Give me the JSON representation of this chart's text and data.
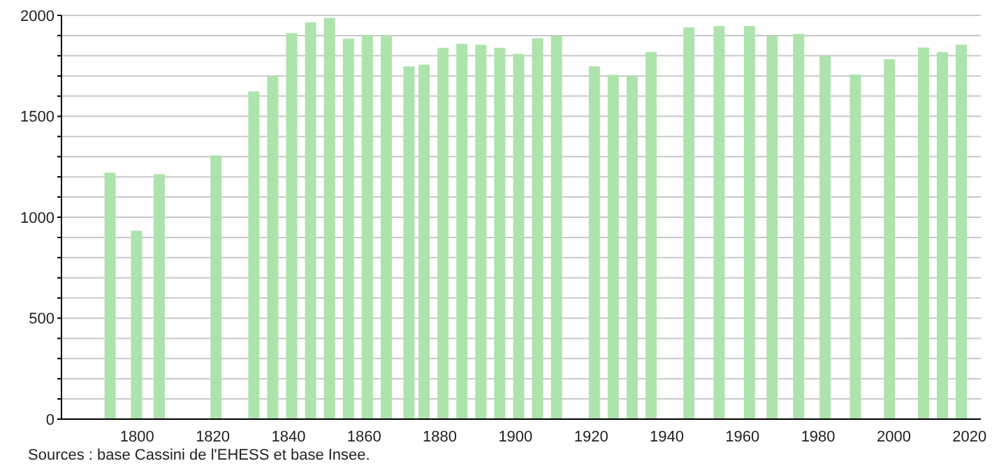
{
  "chart_data": {
    "type": "bar",
    "annotations": [
      "Sources : base Cassini de l'EHESS et base Insee."
    ],
    "x": [
      1793,
      1800,
      1806,
      1821,
      1831,
      1836,
      1841,
      1846,
      1851,
      1856,
      1861,
      1866,
      1872,
      1876,
      1881,
      1886,
      1891,
      1896,
      1901,
      1906,
      1911,
      1921,
      1926,
      1931,
      1936,
      1946,
      1954,
      1962,
      1968,
      1975,
      1982,
      1990,
      1999,
      2008,
      2013,
      2018
    ],
    "values": [
      1221,
      933,
      1214,
      1306,
      1624,
      1698,
      1912,
      1965,
      1988,
      1885,
      1901,
      1901,
      1747,
      1756,
      1839,
      1859,
      1855,
      1839,
      1809,
      1887,
      1896,
      1747,
      1705,
      1700,
      1818,
      1940,
      1947,
      1947,
      1899,
      1908,
      1800,
      1707,
      1783,
      1841,
      1818,
      1855
    ],
    "color": "#ade3ad",
    "xlim": [
      1780,
      2023
    ],
    "xticks": [
      1800,
      1820,
      1840,
      1860,
      1880,
      1900,
      1920,
      1940,
      1960,
      1980,
      2000,
      2020
    ],
    "ylim": [
      0,
      2000
    ],
    "yticks": [
      0,
      {
        "value": 100,
        "label": null
      },
      {
        "value": 200,
        "label": null
      },
      {
        "value": 300,
        "label": null
      },
      {
        "value": 400,
        "label": null
      },
      500,
      {
        "value": 600,
        "label": null
      },
      {
        "value": 700,
        "label": null
      },
      {
        "value": 800,
        "label": null
      },
      {
        "value": 900,
        "label": null
      },
      1000,
      {
        "value": 1100,
        "label": null
      },
      {
        "value": 1200,
        "label": null
      },
      {
        "value": 1300,
        "label": null
      },
      {
        "value": 1400,
        "label": null
      },
      1500,
      {
        "value": 1600,
        "label": null
      },
      {
        "value": 1700,
        "label": null
      },
      {
        "value": 1800,
        "label": null
      },
      {
        "value": 1900,
        "label": null
      },
      2000
    ],
    "grid": "y",
    "legend": false
  }
}
